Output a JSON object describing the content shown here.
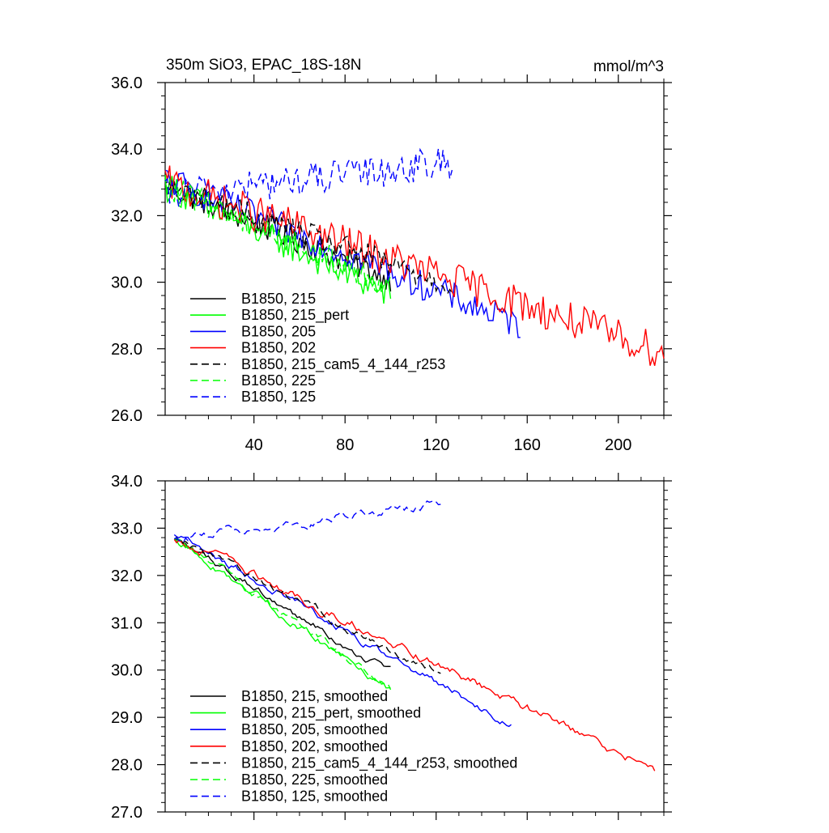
{
  "chart_data": [
    {
      "type": "line",
      "title": "350m SiO3, EPAC_18S-18N",
      "units": "mmol/m^3",
      "xlabel": "",
      "ylabel": "",
      "xlim": [
        1,
        220
      ],
      "ylim": [
        26.0,
        36.0
      ],
      "xticks": [
        40,
        80,
        120,
        160,
        200
      ],
      "yticks": [
        26.0,
        28.0,
        30.0,
        32.0,
        34.0,
        36.0
      ],
      "ytick_labels": [
        "26.0",
        "28.0",
        "30.0",
        "32.0",
        "34.0",
        "36.0"
      ],
      "xtick_labels": [
        "40",
        "80",
        "120",
        "160",
        "200"
      ],
      "legend_position": "bottom-left",
      "series": [
        {
          "name": "B1850, 215",
          "color": "#000000",
          "dash": "solid",
          "x_start": 1,
          "x_end": 100,
          "y_start": 32.9,
          "y_end": 30.1,
          "noise": 0.4
        },
        {
          "name": "B1850, 215_pert",
          "color": "#00ff00",
          "dash": "solid",
          "x_start": 1,
          "x_end": 100,
          "y_start": 32.9,
          "y_end": 29.6,
          "noise": 0.45
        },
        {
          "name": "B1850, 205",
          "color": "#0000ff",
          "dash": "solid",
          "x_start": 1,
          "x_end": 157,
          "y_start": 33.1,
          "y_end": 28.7,
          "noise": 0.45
        },
        {
          "name": "B1850, 202",
          "color": "#ff0000",
          "dash": "solid",
          "x_start": 1,
          "x_end": 220,
          "y_start": 33.0,
          "y_end": 27.9,
          "noise": 0.55
        },
        {
          "name": "B1850, 215_cam5_4_144_r253",
          "color": "#000000",
          "dash": "dashed",
          "x_start": 1,
          "x_end": 127,
          "y_start": 32.9,
          "y_end": 29.9,
          "noise": 0.4
        },
        {
          "name": "B1850, 225",
          "color": "#00ff00",
          "dash": "dashed",
          "x_start": 1,
          "x_end": 100,
          "y_start": 32.9,
          "y_end": 29.9,
          "noise": 0.4
        },
        {
          "name": "B1850, 125",
          "color": "#0000ff",
          "dash": "dashed",
          "x_start": 1,
          "x_end": 127,
          "y_start": 32.6,
          "y_end": 33.6,
          "noise": 0.5
        }
      ]
    },
    {
      "type": "line",
      "title": "",
      "xlabel": "",
      "ylabel": "",
      "xlim": [
        1,
        220
      ],
      "ylim": [
        27.0,
        34.0
      ],
      "xticks": [
        40,
        80,
        120,
        160,
        200
      ],
      "yticks": [
        27.0,
        28.0,
        29.0,
        30.0,
        31.0,
        32.0,
        33.0,
        34.0
      ],
      "ytick_labels": [
        "27.0",
        "28.0",
        "29.0",
        "30.0",
        "31.0",
        "32.0",
        "33.0",
        "34.0"
      ],
      "legend_position": "bottom-left",
      "series": [
        {
          "name": "B1850, 215, smoothed",
          "color": "#000000",
          "dash": "solid",
          "x_start": 5,
          "x_end": 100,
          "y_start": 32.8,
          "y_end": 29.9,
          "noise": 0.12
        },
        {
          "name": "B1850, 215_pert, smoothed",
          "color": "#00ff00",
          "dash": "solid",
          "x_start": 5,
          "x_end": 100,
          "y_start": 32.8,
          "y_end": 29.6,
          "noise": 0.12
        },
        {
          "name": "B1850, 205, smoothed",
          "color": "#0000ff",
          "dash": "solid",
          "x_start": 5,
          "x_end": 153,
          "y_start": 32.9,
          "y_end": 28.85,
          "noise": 0.12
        },
        {
          "name": "B1850, 202, smoothed",
          "color": "#ff0000",
          "dash": "solid",
          "x_start": 5,
          "x_end": 216,
          "y_start": 32.8,
          "y_end": 27.9,
          "noise": 0.14
        },
        {
          "name": "B1850, 215_cam5_4_144_r253, smoothed",
          "color": "#000000",
          "dash": "dashed",
          "x_start": 5,
          "x_end": 122,
          "y_start": 32.8,
          "y_end": 29.9,
          "noise": 0.12
        },
        {
          "name": "B1850, 225, smoothed",
          "color": "#00ff00",
          "dash": "dashed",
          "x_start": 5,
          "x_end": 100,
          "y_start": 32.8,
          "y_end": 29.6,
          "noise": 0.12
        },
        {
          "name": "B1850, 125, smoothed",
          "color": "#0000ff",
          "dash": "dashed",
          "x_start": 5,
          "x_end": 122,
          "y_start": 32.8,
          "y_end": 33.5,
          "noise": 0.14
        }
      ]
    }
  ]
}
